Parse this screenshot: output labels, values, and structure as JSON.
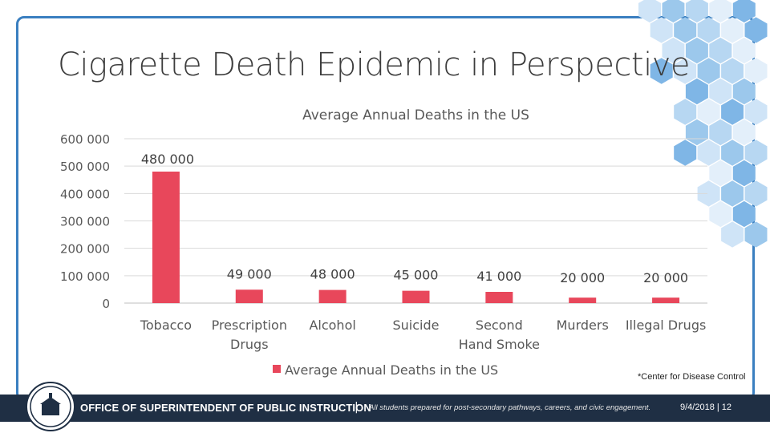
{
  "slide": {
    "title": "Cigarette Death Epidemic in Perspective",
    "footnote": "*Center for Disease Control",
    "footer": {
      "organization": "OFFICE OF SUPERINTENDENT OF PUBLIC INSTRUCTION",
      "separator": "|",
      "tagline": "All students prepared for post-secondary pathways, careers, and civic engagement.",
      "page_info": "9/4/2018 | 12"
    },
    "colors": {
      "frame": "#3a7fc0",
      "bar": "#e8475b",
      "footer": "#1f2f44",
      "hex": "#9cc8ec"
    }
  },
  "chart_data": {
    "type": "bar",
    "title": "Average Annual Deaths in the US",
    "categories": [
      "Tobacco",
      "Prescription Drugs",
      "Alcohol",
      "Suicide",
      "Second Hand Smoke",
      "Murders",
      "Illegal Drugs"
    ],
    "values": [
      480000,
      49000,
      48000,
      45000,
      41000,
      20000,
      20000
    ],
    "value_labels": [
      "480 000",
      "49 000",
      "48 000",
      "45 000",
      "41 000",
      "20 000",
      "20 000"
    ],
    "yticks": [
      0,
      100000,
      200000,
      300000,
      400000,
      500000,
      600000
    ],
    "ytick_labels": [
      "0",
      "100 000",
      "200 000",
      "300 000",
      "400 000",
      "500 000",
      "600 000"
    ],
    "ylim": [
      0,
      600000
    ],
    "legend": "Average Annual Deaths in the US",
    "legend_position": "bottom",
    "grid": true,
    "xlabel": "",
    "ylabel": ""
  }
}
